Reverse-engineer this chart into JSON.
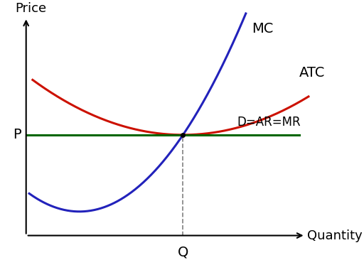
{
  "background_color": "#ffffff",
  "xlim": [
    0,
    10
  ],
  "ylim": [
    0,
    10
  ],
  "P_level": 4.7,
  "Q_level": 5.8,
  "mc_color": "#2222bb",
  "atc_color": "#cc1100",
  "dar_color": "#006600",
  "label_MC": "MC",
  "label_ATC": "ATC",
  "label_DAR": "D=AR=MR",
  "label_P": "P",
  "label_Q": "Q",
  "label_price": "Price",
  "label_quantity": "Quantity",
  "font_size_labels": 13,
  "font_size_axis_labels": 13,
  "line_width": 2.2,
  "ax_x0": 0.8,
  "ax_y0": 0.5
}
